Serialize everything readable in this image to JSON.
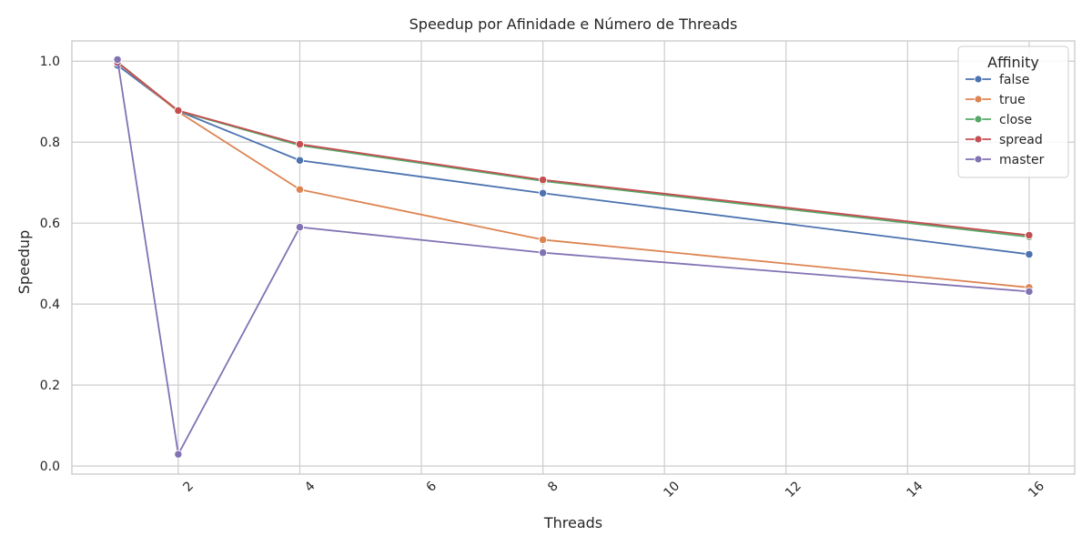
{
  "chart_data": {
    "type": "line",
    "title": "Speedup por Afinidade e Número de Threads",
    "xlabel": "Threads",
    "ylabel": "Speedup",
    "xlim": [
      0.25,
      16.75
    ],
    "ylim": [
      -0.02,
      1.05
    ],
    "x_ticks": [
      2,
      4,
      6,
      8,
      10,
      12,
      14,
      16
    ],
    "y_ticks": [
      0.0,
      0.2,
      0.4,
      0.6,
      0.8,
      1.0
    ],
    "x_tick_labels": [
      "2",
      "4",
      "6",
      "8",
      "10",
      "12",
      "14",
      "16"
    ],
    "y_tick_labels": [
      "0.0",
      "0.2",
      "0.4",
      "0.6",
      "0.8",
      "1.0"
    ],
    "x_tick_rotation": -45,
    "grid": true,
    "legend": {
      "title": "Affinity",
      "position": "top-right"
    },
    "x": [
      1,
      2,
      4,
      8,
      16
    ],
    "series": [
      {
        "name": "false",
        "color": "#4c72b0",
        "values": [
          0.99,
          0.877,
          0.755,
          0.674,
          0.523
        ]
      },
      {
        "name": "true",
        "color": "#dd8452",
        "values": [
          0.997,
          0.875,
          0.683,
          0.559,
          0.441
        ]
      },
      {
        "name": "close",
        "color": "#55a868",
        "values": [
          0.998,
          0.877,
          0.792,
          0.704,
          0.566
        ]
      },
      {
        "name": "spread",
        "color": "#c44e52",
        "values": [
          0.997,
          0.878,
          0.795,
          0.707,
          0.57
        ]
      },
      {
        "name": "master",
        "color": "#8172b3",
        "values": [
          1.004,
          0.029,
          0.59,
          0.527,
          0.431
        ]
      }
    ]
  }
}
